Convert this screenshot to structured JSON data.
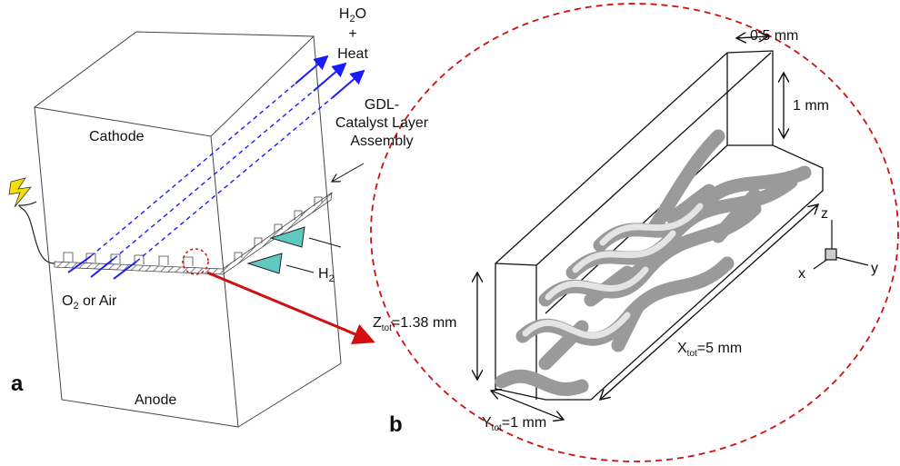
{
  "panel_a": {
    "label": "a",
    "cathode": "Cathode",
    "anode": "Anode",
    "product": {
      "h": "H",
      "sub": "2",
      "o": "O",
      "plus": "+",
      "heat": "Heat"
    },
    "gdl_label": [
      "GDL-",
      "Catalyst Layer",
      "Assembly"
    ],
    "oxidant": {
      "o": "O",
      "sub": "2",
      "rest": " or Air"
    },
    "fuel": {
      "h": "H",
      "sub": "2"
    }
  },
  "panel_b": {
    "label": "b",
    "width": "0.5 mm",
    "height": "1 mm",
    "z_tot": {
      "main": "Z",
      "sub": "tot",
      "rest": "=1.38 mm"
    },
    "x_tot": {
      "main": "X",
      "sub": "tot",
      "rest": "=5 mm"
    },
    "y_tot": {
      "main": "Y",
      "sub": "tot",
      "rest": "=1 mm"
    },
    "axes": {
      "z": "z",
      "x": "x",
      "y": "y"
    }
  }
}
